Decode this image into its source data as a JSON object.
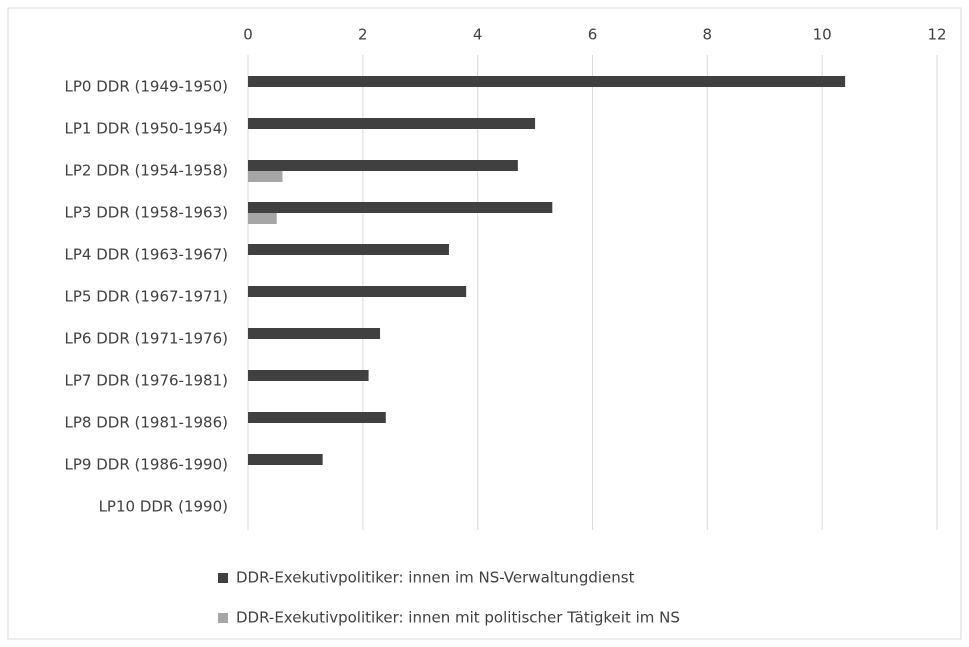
{
  "chart_data": {
    "type": "bar",
    "orientation": "horizontal",
    "categories": [
      "LP0 DDR (1949-1950)",
      "LP1 DDR (1950-1954)",
      "LP2 DDR (1954-1958)",
      "LP3 DDR (1958-1963)",
      "LP4 DDR (1963-1967)",
      "LP5 DDR (1967-1971)",
      "LP6 DDR (1971-1976)",
      "LP7 DDR (1976-1981)",
      "LP8 DDR (1981-1986)",
      "LP9 DDR (1986-1990)",
      "LP10 DDR (1990)"
    ],
    "series": [
      {
        "name": "DDR-Exekutivpolitiker: innen im NS-Verwaltungdienst",
        "color": "#404040",
        "values": [
          10.4,
          5.0,
          4.7,
          5.3,
          3.5,
          3.8,
          2.3,
          2.1,
          2.4,
          1.3,
          0
        ]
      },
      {
        "name": "DDR-Exekutivpolitiker: innen mit politischer Tätigkeit im NS",
        "color": "#a6a6a6",
        "values": [
          0,
          0,
          0.6,
          0.5,
          0,
          0,
          0,
          0,
          0,
          0,
          0
        ]
      }
    ],
    "xlim": [
      0,
      12
    ],
    "xticks": [
      0,
      2,
      4,
      6,
      8,
      10,
      12
    ],
    "grid": true,
    "legend": "bottom"
  }
}
